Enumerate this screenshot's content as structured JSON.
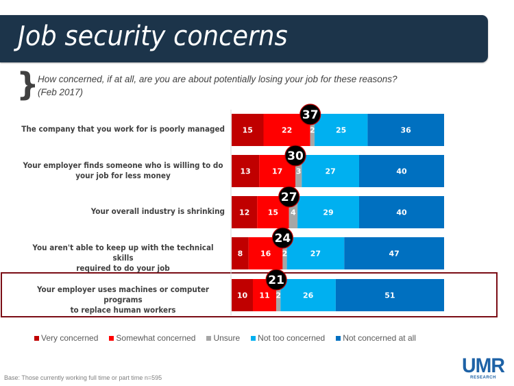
{
  "header": {
    "title": "Job security concerns"
  },
  "subtitle": {
    "brace": "}",
    "line1": "How concerned, if at all, are you are about potentially losing your job for these reasons?",
    "line2": "(Feb 2017)"
  },
  "chart_data": {
    "type": "bar",
    "orientation": "horizontal",
    "stacked": true,
    "title": "Job security concerns",
    "subtitle": "How concerned, if at all, are you are about potentially losing your job for these reasons? (Feb 2017)",
    "categories": [
      [
        "The company that you work for is poorly managed"
      ],
      [
        "Your employer finds someone who is willing to do",
        "your job for less money"
      ],
      [
        "Your overall industry is shrinking"
      ],
      [
        "You aren't able to keep up with the technical skills",
        "required to do your job"
      ],
      [
        "Your employer uses machines or computer programs",
        "to replace human workers"
      ]
    ],
    "series": [
      {
        "name": "Very concerned",
        "color": "#c00000",
        "values": [
          15,
          13,
          12,
          8,
          10
        ]
      },
      {
        "name": "Somewhat concerned",
        "color": "#ff0000",
        "values": [
          22,
          17,
          15,
          16,
          11
        ]
      },
      {
        "name": "Unsure",
        "color": "#a6a6a6",
        "values": [
          2,
          3,
          4,
          2,
          2
        ]
      },
      {
        "name": "Not too concerned",
        "color": "#00b0f0",
        "values": [
          25,
          27,
          29,
          27,
          26
        ]
      },
      {
        "name": "Not concerned at all",
        "color": "#0070c0",
        "values": [
          36,
          40,
          40,
          47,
          51
        ]
      }
    ],
    "net_concerned": [
      37,
      30,
      27,
      24,
      21
    ],
    "highlighted_category_index": 4,
    "legend_position": "bottom",
    "grid": false,
    "xlabel": "",
    "ylabel": ""
  },
  "footer": {
    "base_note": "Base: Those currently working full time or part time n=595",
    "logo_main": "UMR",
    "logo_sub": "RESEARCH"
  }
}
